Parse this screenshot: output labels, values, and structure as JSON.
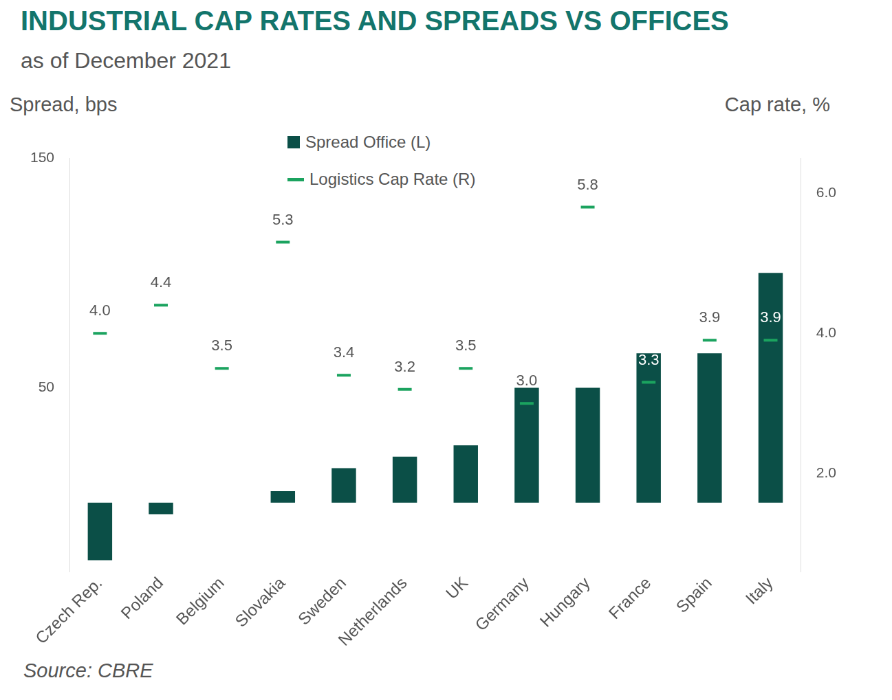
{
  "chart_data": {
    "type": "bar",
    "title": "INDUSTRIAL CAP RATES AND SPREADS VS OFFICES",
    "subtitle": "as of December 2021",
    "y_label": "Spread, bps",
    "y2_label": "Cap rate, %",
    "source": "Source: CBRE",
    "categories": [
      "Czech Rep.",
      "Poland",
      "Belgium",
      "Slovakia",
      "Sweden",
      "Netherlands",
      "UK",
      "Germany",
      "Hungary",
      "France",
      "Spain",
      "Italy"
    ],
    "series": [
      {
        "name": "Spread Office (L)",
        "type": "bar",
        "color": "#0b4f47",
        "values": [
          -25,
          -5,
          0,
          5,
          15,
          20,
          25,
          50,
          50,
          65,
          65,
          100
        ]
      },
      {
        "name": "Logistics Cap Rate (R)",
        "type": "line",
        "axis": "y2",
        "color": "#1ba35f",
        "marker": "dash",
        "line_style": "none",
        "data_labels": true,
        "values": [
          4.0,
          4.4,
          3.5,
          5.3,
          3.4,
          3.2,
          3.5,
          3.0,
          5.8,
          3.3,
          3.9,
          3.9
        ],
        "value_labels": [
          "4.0",
          "4.4",
          "3.5",
          "5.3",
          "3.4",
          "3.2",
          "3.5",
          "3.0",
          "5.8",
          "3.3",
          "3.9",
          "3.9"
        ]
      }
    ],
    "ylim": [
      -30,
      150
    ],
    "yticks": [
      50,
      150
    ],
    "y2lim": [
      0.6,
      6.5
    ],
    "y2ticks": [
      {
        "value": 2,
        "label": "2.0"
      },
      {
        "value": 4,
        "label": "4.0"
      },
      {
        "value": 6,
        "label": "6.0"
      }
    ],
    "legend": "top",
    "grid": false
  }
}
